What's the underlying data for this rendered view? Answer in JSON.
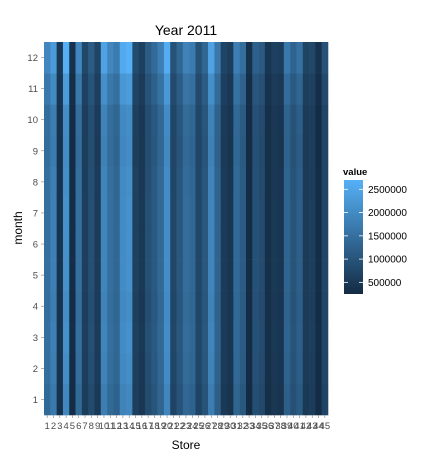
{
  "chart_data": {
    "type": "heatmap",
    "title": "Year 2011",
    "xlabel": "Store",
    "ylabel": "month",
    "x_categories": [
      "1",
      "2",
      "3",
      "4",
      "5",
      "6",
      "7",
      "8",
      "9",
      "10",
      "11",
      "12",
      "13",
      "14",
      "15",
      "16",
      "17",
      "18",
      "19",
      "20",
      "21",
      "22",
      "23",
      "24",
      "25",
      "26",
      "27",
      "28",
      "29",
      "30",
      "31",
      "32",
      "33",
      "34",
      "35",
      "36",
      "37",
      "38",
      "39",
      "40",
      "41",
      "42",
      "43",
      "44",
      "45"
    ],
    "y_categories": [
      "1",
      "2",
      "3",
      "4",
      "5",
      "6",
      "7",
      "8",
      "9",
      "10",
      "11",
      "12"
    ],
    "store_base_values": [
      1500000,
      1800000,
      400000,
      2100000,
      300000,
      1500000,
      600000,
      900000,
      550000,
      1900000,
      1500000,
      1350000,
      2000000,
      2100000,
      650000,
      500000,
      900000,
      1100000,
      1400000,
      2050000,
      750000,
      1050000,
      1450000,
      1350000,
      750000,
      1050000,
      1900000,
      1300000,
      550000,
      450000,
      1400000,
      1150000,
      280000,
      950000,
      850000,
      350000,
      500000,
      450000,
      1300000,
      1000000,
      1200000,
      550000,
      600000,
      300000,
      750000
    ],
    "month_factors": [
      0.93,
      0.98,
      1.0,
      0.98,
      1.0,
      1.0,
      1.0,
      0.99,
      0.96,
      0.98,
      1.1,
      1.28
    ],
    "value_range": [
      250000,
      2700000
    ],
    "color_low": "#132B43",
    "color_high": "#56B1F7",
    "panel_background": "#E5E5E5",
    "grid_color": "#FFFFFF",
    "legend": {
      "title": "value",
      "position": "right",
      "breaks": [
        500000,
        1000000,
        1500000,
        2000000,
        2500000
      ],
      "labels": [
        "500000",
        "1000000",
        "1500000",
        "2000000",
        "2500000"
      ]
    }
  }
}
